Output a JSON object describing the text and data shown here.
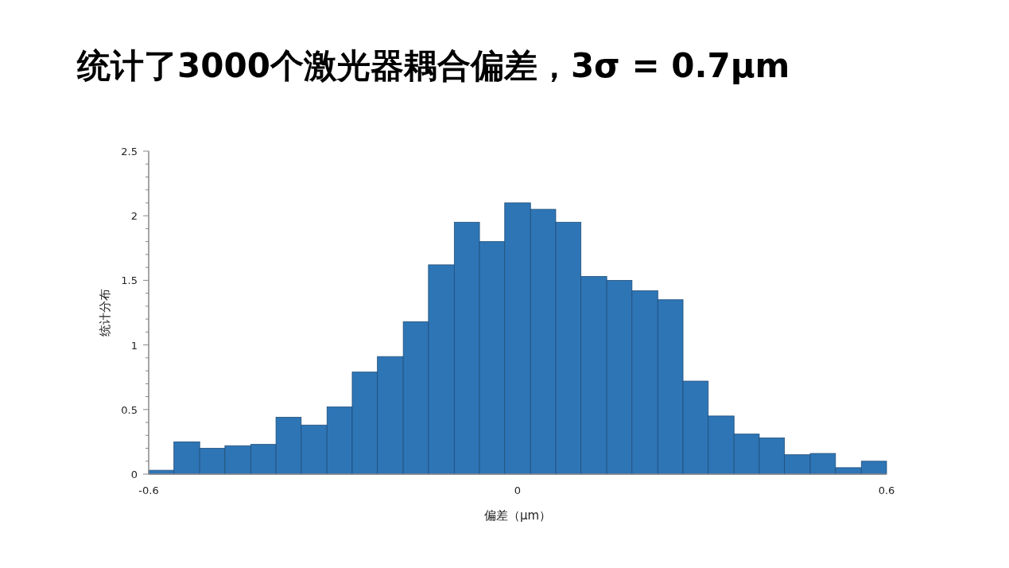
{
  "chart_data": {
    "type": "histogram",
    "title": "统计了3000个激光器耦合偏差，3σ = 0.7μm",
    "xlabel": "偏差（μm）",
    "ylabel": "统计分布",
    "bins": [
      -0.6,
      -0.559,
      -0.517,
      -0.476,
      -0.434,
      -0.393,
      -0.352,
      -0.31,
      -0.269,
      -0.228,
      -0.186,
      -0.145,
      -0.103,
      -0.062,
      -0.021,
      0.021,
      0.062,
      0.103,
      0.145,
      0.186,
      0.228,
      0.269,
      0.31,
      0.352,
      0.393,
      0.434,
      0.476,
      0.517,
      0.559,
      0.6
    ],
    "values": [
      0.03,
      0.25,
      0.2,
      0.22,
      0.23,
      0.44,
      0.38,
      0.52,
      0.79,
      0.91,
      1.18,
      1.62,
      1.95,
      1.8,
      2.1,
      2.05,
      1.95,
      1.53,
      1.5,
      1.42,
      1.35,
      0.72,
      0.45,
      0.31,
      0.28,
      0.15,
      0.16,
      0.05,
      0.1
    ],
    "color": "#2e75b6",
    "xlim": [
      -0.6,
      0.6
    ],
    "xticks": [
      -0.6,
      0,
      0.6
    ],
    "ylim": [
      0,
      2.5
    ],
    "yticks": [
      0,
      {
        "value": 0.1,
        "label": null
      },
      {
        "value": 0.2,
        "label": null
      },
      {
        "value": 0.3,
        "label": null
      },
      {
        "value": 0.4,
        "label": null
      },
      0.5,
      {
        "value": 0.6,
        "label": null
      },
      {
        "value": 0.7,
        "label": null
      },
      {
        "value": 0.8,
        "label": null
      },
      {
        "value": 0.9,
        "label": null
      },
      1,
      {
        "value": 1.1,
        "label": null
      },
      {
        "value": 1.2,
        "label": null
      },
      {
        "value": 1.3,
        "label": null
      },
      {
        "value": 1.4,
        "label": null
      },
      1.5,
      {
        "value": 1.6,
        "label": null
      },
      {
        "value": 1.7,
        "label": null
      },
      {
        "value": 1.8,
        "label": null
      },
      {
        "value": 1.9,
        "label": null
      },
      2,
      {
        "value": 2.1,
        "label": null
      },
      {
        "value": 2.2,
        "label": null
      },
      {
        "value": 2.3,
        "label": null
      },
      {
        "value": 2.4,
        "label": null
      },
      2.5
    ],
    "grid": false
  }
}
